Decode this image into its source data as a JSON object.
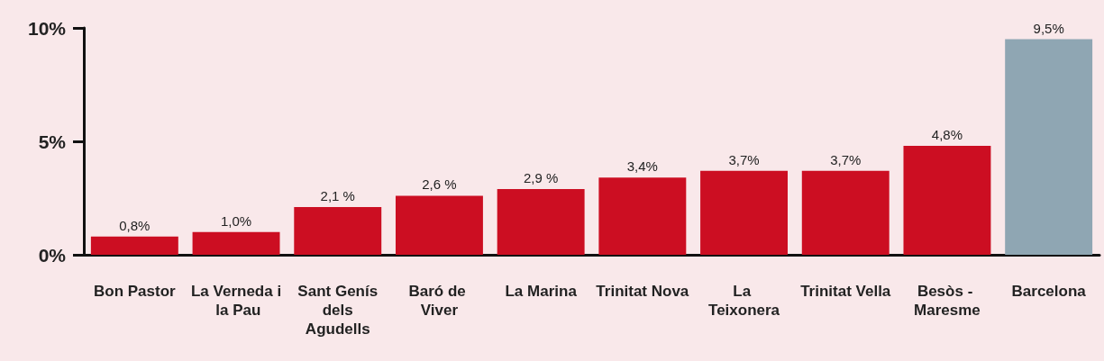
{
  "chart_data": {
    "type": "bar",
    "categories": [
      "Bon Pastor",
      "La Verneda i la Pau",
      "Sant Genís dels Agudells",
      "Baró de Viver",
      "La Marina",
      "Trinitat Nova",
      "La Teixonera",
      "Trinitat Vella",
      "Besòs - Maresme",
      "Barcelona"
    ],
    "values": [
      0.8,
      1.0,
      2.1,
      2.6,
      2.9,
      3.4,
      3.7,
      3.7,
      4.8,
      9.5
    ],
    "colors": [
      "#cc0e22",
      "#cc0e22",
      "#cc0e22",
      "#cc0e22",
      "#cc0e22",
      "#cc0e22",
      "#cc0e22",
      "#cc0e22",
      "#cc0e22",
      "#8fa6b3"
    ],
    "value_labels": [
      "0,8%",
      "1,0%",
      "2,1 %",
      "2,6 %",
      "2,9 %",
      "3,4%",
      "3,7%",
      "3,7%",
      "4,8%",
      "9,5%"
    ],
    "ylim": [
      0,
      10
    ],
    "yticks": [
      {
        "value": 0,
        "label": "0%"
      },
      {
        "value": 5,
        "label": "5%"
      },
      {
        "value": 10,
        "label": "10%"
      }
    ],
    "grid": false
  }
}
